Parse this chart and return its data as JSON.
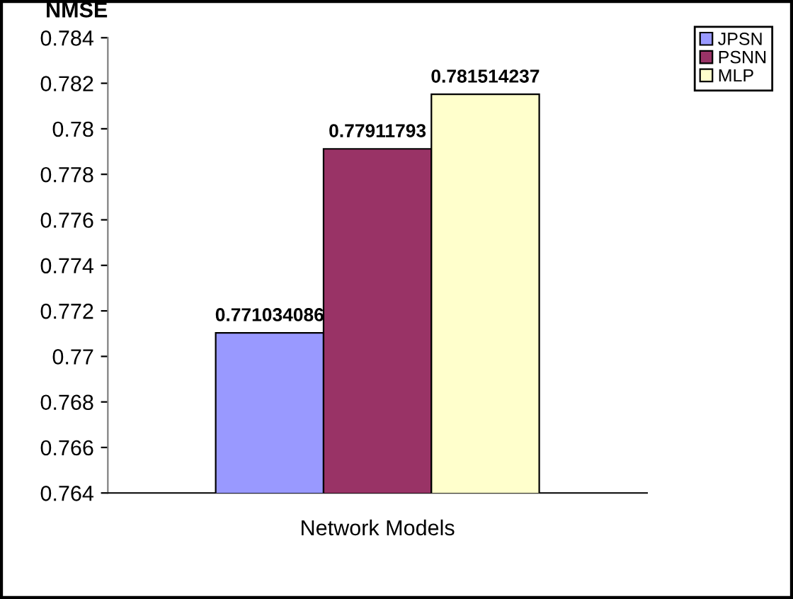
{
  "chart_data": {
    "type": "bar",
    "ylabel": "NMSE",
    "xlabel": "Network Models",
    "categories": [
      null
    ],
    "series": [
      {
        "name": "JPSN",
        "color": "#9999ff",
        "values": [
          0.771034086
        ]
      },
      {
        "name": "PSNN",
        "color": "#993366",
        "values": [
          0.77911793
        ]
      },
      {
        "name": "MLP",
        "color": "#ffffcc",
        "values": [
          0.781514237
        ]
      }
    ],
    "ylim": [
      0.764,
      0.784
    ],
    "yticks": [
      0.764,
      0.766,
      0.768,
      0.77,
      0.772,
      0.774,
      0.776,
      0.778,
      0.78,
      0.782,
      0.784
    ],
    "data_labels": true,
    "legend": "top right",
    "grid": false
  }
}
